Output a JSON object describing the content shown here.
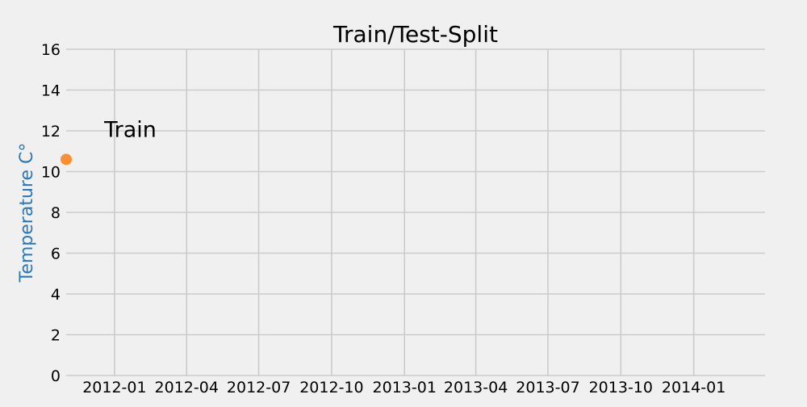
{
  "chart_data": {
    "type": "scatter",
    "title": "Train/Test-Split",
    "xlabel": "",
    "ylabel": "Temperature C°",
    "x_axis": {
      "type": "date",
      "min": "2011-11-01",
      "max": "2014-04-01",
      "ticks": [
        "2012-01-01",
        "2012-04-01",
        "2012-07-01",
        "2012-10-01",
        "2013-01-01",
        "2013-04-01",
        "2013-07-01",
        "2013-10-01",
        "2014-01-01"
      ],
      "tick_labels": [
        "2012-01",
        "2012-04",
        "2012-07",
        "2012-10",
        "2013-01",
        "2013-04",
        "2013-07",
        "2013-10",
        "2014-01"
      ]
    },
    "ylim": [
      0,
      16
    ],
    "yticks": [
      0,
      2,
      4,
      6,
      8,
      10,
      12,
      14,
      16
    ],
    "grid": true,
    "series": [
      {
        "points": [
          {
            "x": "2011-11-01",
            "y": 10.6
          }
        ],
        "color": "#fc8f32"
      }
    ],
    "annotations": [
      {
        "text": "Train",
        "x": "2012-01-21",
        "y": 12.1
      }
    ],
    "colors": {
      "background": "#f0f0f0",
      "grid": "#cbcbcb",
      "ylabel": "#2a78b5",
      "text": "#000000"
    }
  }
}
